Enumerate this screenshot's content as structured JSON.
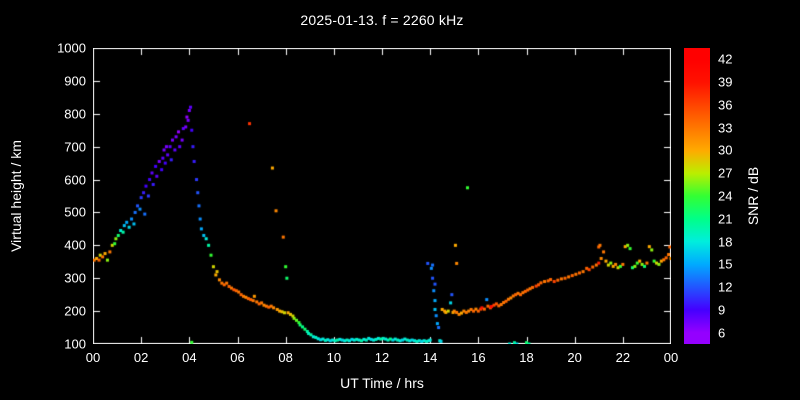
{
  "title": "2025-01-13. f = 2260 kHz",
  "colors": {
    "background": "#000000",
    "text": "#ffffff",
    "axis": "#ffffff"
  },
  "axes": {
    "x_label": "UT Time / hrs",
    "y_label": "Virtual height / km",
    "x_range": [
      0,
      24
    ],
    "y_range": [
      100,
      1000
    ],
    "x_tick_values": [
      0,
      2,
      4,
      6,
      8,
      10,
      12,
      14,
      16,
      18,
      20,
      22,
      24
    ],
    "x_tick_labels": [
      "00",
      "02",
      "04",
      "06",
      "08",
      "10",
      "12",
      "14",
      "16",
      "18",
      "20",
      "22",
      "00"
    ],
    "y_tick_values": [
      100,
      200,
      300,
      400,
      500,
      600,
      700,
      800,
      900,
      1000
    ]
  },
  "colorbar": {
    "label": "SNR / dB",
    "tick_values": [
      6,
      9,
      12,
      15,
      18,
      21,
      24,
      27,
      30,
      33,
      36,
      39,
      42
    ],
    "edge_range": [
      4.5,
      43.5
    ],
    "stops": [
      {
        "value": 6,
        "color": "#9400ff"
      },
      {
        "value": 9,
        "color": "#4400ff"
      },
      {
        "value": 12,
        "color": "#2255ff"
      },
      {
        "value": 15,
        "color": "#00aaff"
      },
      {
        "value": 18,
        "color": "#00eedd"
      },
      {
        "value": 21,
        "color": "#00ff88"
      },
      {
        "value": 24,
        "color": "#33ff33"
      },
      {
        "value": 27,
        "color": "#bbee00"
      },
      {
        "value": 30,
        "color": "#ffaa00"
      },
      {
        "value": 33,
        "color": "#ff7700"
      },
      {
        "value": 36,
        "color": "#ff4400"
      },
      {
        "value": 39,
        "color": "#ff1100"
      },
      {
        "value": 42,
        "color": "#ff0000"
      }
    ]
  },
  "chart_data": {
    "type": "scatter",
    "title": "2025-01-13. f = 2260 kHz",
    "xlabel": "UT Time / hrs",
    "ylabel": "Virtual height / km",
    "xlim": [
      0,
      24
    ],
    "ylim": [
      100,
      1000
    ],
    "grid": false,
    "legend": "colorbar-right",
    "colorbar_label": "SNR / dB",
    "colorbar_ticks": [
      6,
      9,
      12,
      15,
      18,
      21,
      24,
      27,
      30,
      33,
      36,
      39,
      42
    ],
    "point_format": [
      "ut_hours",
      "virtual_height_km",
      "snr_db"
    ],
    "points": [
      [
        0.05,
        355,
        33
      ],
      [
        0.15,
        360,
        30
      ],
      [
        0.25,
        355,
        34
      ],
      [
        0.3,
        370,
        28
      ],
      [
        0.4,
        365,
        33
      ],
      [
        0.5,
        375,
        30
      ],
      [
        0.6,
        355,
        26
      ],
      [
        0.7,
        380,
        33
      ],
      [
        0.8,
        400,
        28
      ],
      [
        0.9,
        405,
        24
      ],
      [
        0.95,
        420,
        26
      ],
      [
        1.05,
        430,
        22
      ],
      [
        1.15,
        445,
        18
      ],
      [
        1.25,
        440,
        20
      ],
      [
        1.3,
        460,
        16
      ],
      [
        1.4,
        470,
        15
      ],
      [
        1.5,
        455,
        17
      ],
      [
        1.6,
        480,
        14
      ],
      [
        1.7,
        465,
        16
      ],
      [
        1.75,
        500,
        13
      ],
      [
        1.85,
        520,
        12
      ],
      [
        1.95,
        510,
        14
      ],
      [
        2.0,
        545,
        11
      ],
      [
        2.1,
        560,
        10
      ],
      [
        2.15,
        495,
        13
      ],
      [
        2.2,
        580,
        9
      ],
      [
        2.3,
        550,
        11
      ],
      [
        2.35,
        600,
        9
      ],
      [
        2.45,
        620,
        8
      ],
      [
        2.5,
        585,
        10
      ],
      [
        2.6,
        640,
        9
      ],
      [
        2.65,
        610,
        8
      ],
      [
        2.75,
        655,
        7
      ],
      [
        2.85,
        630,
        9
      ],
      [
        2.9,
        665,
        8
      ],
      [
        2.95,
        690,
        7
      ],
      [
        3.0,
        650,
        9
      ],
      [
        3.05,
        700,
        7
      ],
      [
        3.1,
        675,
        8
      ],
      [
        3.2,
        700,
        8
      ],
      [
        3.25,
        660,
        10
      ],
      [
        3.3,
        720,
        7
      ],
      [
        3.4,
        690,
        8
      ],
      [
        3.45,
        730,
        7
      ],
      [
        3.55,
        745,
        6
      ],
      [
        3.6,
        700,
        8
      ],
      [
        3.7,
        720,
        7
      ],
      [
        3.75,
        755,
        8
      ],
      [
        3.85,
        760,
        7
      ],
      [
        3.9,
        790,
        6
      ],
      [
        3.95,
        780,
        7
      ],
      [
        4.0,
        810,
        7
      ],
      [
        4.05,
        820,
        8
      ],
      [
        4.1,
        750,
        9
      ],
      [
        4.1,
        105,
        24
      ],
      [
        4.15,
        700,
        10
      ],
      [
        4.2,
        655,
        10
      ],
      [
        4.3,
        600,
        11
      ],
      [
        4.35,
        560,
        12
      ],
      [
        4.4,
        520,
        13
      ],
      [
        4.45,
        480,
        14
      ],
      [
        4.5,
        450,
        15
      ],
      [
        4.6,
        430,
        16
      ],
      [
        4.7,
        420,
        18
      ],
      [
        4.8,
        400,
        20
      ],
      [
        4.9,
        370,
        24
      ],
      [
        5.0,
        335,
        28
      ],
      [
        5.1,
        310,
        30
      ],
      [
        5.15,
        320,
        29
      ],
      [
        5.25,
        295,
        32
      ],
      [
        5.35,
        285,
        33
      ],
      [
        5.45,
        280,
        34
      ],
      [
        5.55,
        285,
        33
      ],
      [
        5.65,
        275,
        34
      ],
      [
        5.75,
        270,
        33
      ],
      [
        5.85,
        265,
        35
      ],
      [
        5.95,
        262,
        34
      ],
      [
        6.05,
        258,
        33
      ],
      [
        6.15,
        250,
        34
      ],
      [
        6.25,
        245,
        33
      ],
      [
        6.35,
        242,
        32
      ],
      [
        6.45,
        238,
        34
      ],
      [
        6.5,
        770,
        37
      ],
      [
        6.55,
        235,
        34
      ],
      [
        6.65,
        232,
        33
      ],
      [
        6.7,
        245,
        31
      ],
      [
        6.8,
        228,
        33
      ],
      [
        6.9,
        222,
        34
      ],
      [
        7.0,
        225,
        33
      ],
      [
        7.1,
        218,
        32
      ],
      [
        7.2,
        215,
        33
      ],
      [
        7.3,
        212,
        34
      ],
      [
        7.4,
        215,
        33
      ],
      [
        7.45,
        635,
        30
      ],
      [
        7.5,
        210,
        32
      ],
      [
        7.6,
        505,
        32
      ],
      [
        7.65,
        205,
        31
      ],
      [
        7.75,
        200,
        30
      ],
      [
        7.85,
        198,
        29
      ],
      [
        7.9,
        425,
        33
      ],
      [
        7.95,
        195,
        28
      ],
      [
        8.0,
        335,
        24
      ],
      [
        8.05,
        300,
        22
      ],
      [
        8.1,
        195,
        30
      ],
      [
        8.2,
        190,
        29
      ],
      [
        8.3,
        185,
        28
      ],
      [
        8.35,
        178,
        26
      ],
      [
        8.45,
        172,
        25
      ],
      [
        8.55,
        165,
        24
      ],
      [
        8.6,
        158,
        22
      ],
      [
        8.7,
        152,
        21
      ],
      [
        8.8,
        145,
        22
      ],
      [
        8.9,
        138,
        20
      ],
      [
        8.95,
        132,
        19
      ],
      [
        9.05,
        128,
        20
      ],
      [
        9.15,
        122,
        18
      ],
      [
        9.25,
        120,
        19
      ],
      [
        9.35,
        116,
        18
      ],
      [
        9.45,
        113,
        17
      ],
      [
        9.55,
        115,
        18
      ],
      [
        9.65,
        111,
        19
      ],
      [
        9.75,
        113,
        18
      ],
      [
        9.85,
        110,
        17
      ],
      [
        9.95,
        112,
        18
      ],
      [
        10.05,
        110,
        19
      ],
      [
        10.15,
        112,
        20
      ],
      [
        10.25,
        114,
        18
      ],
      [
        10.35,
        112,
        17
      ],
      [
        10.45,
        110,
        18
      ],
      [
        10.55,
        112,
        19
      ],
      [
        10.65,
        110,
        18
      ],
      [
        10.75,
        114,
        17
      ],
      [
        10.85,
        112,
        18
      ],
      [
        10.95,
        114,
        19
      ],
      [
        11.05,
        112,
        18
      ],
      [
        11.15,
        110,
        20
      ],
      [
        11.25,
        114,
        18
      ],
      [
        11.35,
        112,
        19
      ],
      [
        11.45,
        117,
        18
      ],
      [
        11.55,
        114,
        17
      ],
      [
        11.65,
        112,
        18
      ],
      [
        11.75,
        114,
        19
      ],
      [
        11.85,
        117,
        18
      ],
      [
        11.95,
        115,
        20
      ],
      [
        12.05,
        117,
        19
      ],
      [
        12.15,
        115,
        18
      ],
      [
        12.25,
        112,
        19
      ],
      [
        12.35,
        115,
        21
      ],
      [
        12.45,
        112,
        17
      ],
      [
        12.55,
        115,
        18
      ],
      [
        12.65,
        112,
        19
      ],
      [
        12.75,
        110,
        18
      ],
      [
        12.85,
        112,
        17
      ],
      [
        12.95,
        115,
        18
      ],
      [
        13.05,
        112,
        19
      ],
      [
        13.15,
        110,
        18
      ],
      [
        13.25,
        112,
        17
      ],
      [
        13.35,
        110,
        18
      ],
      [
        13.45,
        108,
        19
      ],
      [
        13.55,
        110,
        18
      ],
      [
        13.65,
        108,
        17
      ],
      [
        13.75,
        110,
        18
      ],
      [
        13.85,
        108,
        19
      ],
      [
        13.9,
        345,
        12
      ],
      [
        13.95,
        110,
        18
      ],
      [
        14.0,
        112,
        18
      ],
      [
        14.05,
        330,
        14
      ],
      [
        14.1,
        340,
        13
      ],
      [
        14.1,
        300,
        12
      ],
      [
        14.15,
        262,
        14
      ],
      [
        14.2,
        282,
        12
      ],
      [
        14.2,
        232,
        15
      ],
      [
        14.2,
        205,
        16
      ],
      [
        14.25,
        186,
        14
      ],
      [
        14.3,
        162,
        15
      ],
      [
        14.35,
        150,
        13
      ],
      [
        14.4,
        110,
        18
      ],
      [
        14.45,
        108,
        17
      ],
      [
        14.5,
        205,
        30
      ],
      [
        14.6,
        200,
        31
      ],
      [
        14.65,
        196,
        30
      ],
      [
        14.75,
        200,
        28
      ],
      [
        14.85,
        225,
        17
      ],
      [
        14.9,
        250,
        12
      ],
      [
        14.95,
        196,
        30
      ],
      [
        15.0,
        200,
        32
      ],
      [
        15.05,
        400,
        30
      ],
      [
        15.1,
        345,
        32
      ],
      [
        15.1,
        196,
        33
      ],
      [
        15.2,
        190,
        32
      ],
      [
        15.3,
        194,
        30
      ],
      [
        15.4,
        200,
        32
      ],
      [
        15.5,
        196,
        33
      ],
      [
        15.55,
        575,
        24
      ],
      [
        15.6,
        200,
        32
      ],
      [
        15.7,
        205,
        33
      ],
      [
        15.8,
        200,
        34
      ],
      [
        15.9,
        206,
        32
      ],
      [
        16.0,
        200,
        34
      ],
      [
        16.1,
        206,
        36
      ],
      [
        16.15,
        210,
        39
      ],
      [
        16.25,
        206,
        34
      ],
      [
        16.35,
        235,
        14
      ],
      [
        16.4,
        215,
        34
      ],
      [
        16.5,
        210,
        36
      ],
      [
        16.55,
        214,
        40
      ],
      [
        16.65,
        218,
        36
      ],
      [
        16.75,
        222,
        35
      ],
      [
        16.85,
        216,
        34
      ],
      [
        16.95,
        220,
        33
      ],
      [
        17.05,
        226,
        33
      ],
      [
        17.15,
        230,
        34
      ],
      [
        17.25,
        236,
        33
      ],
      [
        17.3,
        100,
        18
      ],
      [
        17.35,
        240,
        32
      ],
      [
        17.45,
        246,
        33
      ],
      [
        17.5,
        104,
        20
      ],
      [
        17.55,
        250,
        34
      ],
      [
        17.6,
        100,
        17
      ],
      [
        17.65,
        254,
        33
      ],
      [
        17.75,
        250,
        34
      ],
      [
        17.85,
        256,
        33
      ],
      [
        17.95,
        260,
        34
      ],
      [
        18.0,
        104,
        22
      ],
      [
        18.05,
        264,
        34
      ],
      [
        18.1,
        100,
        20
      ],
      [
        18.15,
        268,
        33
      ],
      [
        18.25,
        272,
        34
      ],
      [
        18.4,
        276,
        36
      ],
      [
        18.5,
        280,
        35
      ],
      [
        18.6,
        286,
        34
      ],
      [
        18.75,
        290,
        33
      ],
      [
        18.9,
        292,
        34
      ],
      [
        19.0,
        296,
        34
      ],
      [
        19.15,
        290,
        36
      ],
      [
        19.3,
        294,
        34
      ],
      [
        19.45,
        298,
        33
      ],
      [
        19.6,
        300,
        34
      ],
      [
        19.75,
        304,
        33
      ],
      [
        19.9,
        308,
        34
      ],
      [
        20.05,
        312,
        33
      ],
      [
        20.2,
        316,
        34
      ],
      [
        20.35,
        320,
        33
      ],
      [
        20.5,
        330,
        34
      ],
      [
        20.6,
        326,
        36
      ],
      [
        20.75,
        334,
        34
      ],
      [
        20.9,
        340,
        33
      ],
      [
        21.0,
        346,
        38
      ],
      [
        21.0,
        395,
        34
      ],
      [
        21.05,
        400,
        33
      ],
      [
        21.1,
        360,
        32
      ],
      [
        21.2,
        380,
        33
      ],
      [
        21.3,
        352,
        30
      ],
      [
        21.4,
        340,
        28
      ],
      [
        21.5,
        346,
        26
      ],
      [
        21.6,
        336,
        30
      ],
      [
        21.7,
        342,
        32
      ],
      [
        21.8,
        332,
        28
      ],
      [
        21.9,
        336,
        24
      ],
      [
        22.0,
        342,
        33
      ],
      [
        22.1,
        396,
        30
      ],
      [
        22.2,
        400,
        26
      ],
      [
        22.3,
        390,
        24
      ],
      [
        22.4,
        332,
        22
      ],
      [
        22.5,
        336,
        26
      ],
      [
        22.6,
        346,
        24
      ],
      [
        22.7,
        352,
        30
      ],
      [
        22.8,
        342,
        26
      ],
      [
        22.9,
        336,
        22
      ],
      [
        23.0,
        346,
        33
      ],
      [
        23.1,
        396,
        30
      ],
      [
        23.2,
        386,
        26
      ],
      [
        23.3,
        352,
        24
      ],
      [
        23.4,
        346,
        28
      ],
      [
        23.5,
        342,
        26
      ],
      [
        23.6,
        352,
        30
      ],
      [
        23.7,
        356,
        33
      ],
      [
        23.8,
        362,
        34
      ],
      [
        23.9,
        372,
        33
      ],
      [
        23.95,
        395,
        34
      ],
      [
        24.0,
        360,
        31
      ]
    ]
  }
}
